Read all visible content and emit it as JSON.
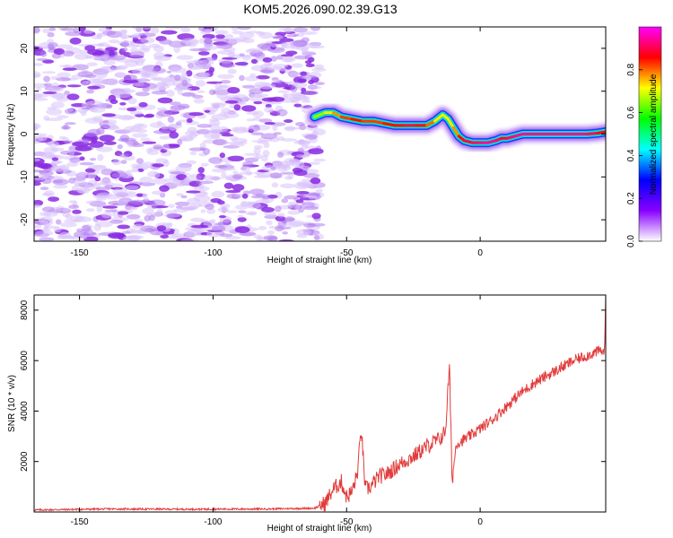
{
  "title": "KOM5.2026.090.02.39.G13",
  "chart_data": [
    {
      "type": "heatmap",
      "title": "KOM5.2026.090.02.39.G13",
      "xlabel": "Height of straight line (km)",
      "ylabel": "Frequency (Hz)",
      "xlim": [
        -167,
        47
      ],
      "ylim": [
        -25,
        25
      ],
      "xticks": [
        -150,
        -100,
        -50,
        0
      ],
      "yticks": [
        -20,
        -10,
        0,
        10,
        20
      ],
      "noise_region_x": [
        -167,
        -60
      ],
      "ridge": {
        "x": [
          -62,
          -58,
          -55,
          -52,
          -48,
          -44,
          -40,
          -36,
          -32,
          -28,
          -24,
          -20,
          -17,
          -14,
          -12,
          -10,
          -8,
          -6,
          -3,
          0,
          3,
          6,
          8,
          10,
          13,
          16,
          20,
          25,
          30,
          35,
          40,
          44,
          47
        ],
        "freq": [
          4,
          5,
          5,
          4,
          3.5,
          3,
          3,
          2.5,
          2,
          2,
          2,
          2,
          3,
          4.5,
          3.5,
          1.5,
          -0.5,
          -1.5,
          -2,
          -2,
          -2,
          -1.5,
          -1,
          -1,
          -0.5,
          0,
          0,
          0,
          0,
          0,
          0,
          0.2,
          0.5
        ],
        "amplitude": [
          0.6,
          0.7,
          0.75,
          0.8,
          0.85,
          0.85,
          0.8,
          0.85,
          0.85,
          0.9,
          0.9,
          0.85,
          0.75,
          0.7,
          0.7,
          0.75,
          0.8,
          0.9,
          0.9,
          0.95,
          0.95,
          0.95,
          0.9,
          0.9,
          0.95,
          0.95,
          0.95,
          0.95,
          0.95,
          0.95,
          0.95,
          0.9,
          0.85
        ]
      },
      "colorbar": {
        "label": "Normalized spectral amplitude",
        "ticks": [
          0.0,
          0.2,
          0.4,
          0.6,
          0.8
        ],
        "range": [
          0,
          1
        ],
        "colors": [
          "#ffffff",
          "#8800ff",
          "#0000ff",
          "#00ffff",
          "#00ff00",
          "#ffff00",
          "#ff0000",
          "#ff00ff"
        ]
      }
    },
    {
      "type": "line",
      "xlabel": "Height of straight line (km)",
      "ylabel": "SNR (10 * v/v)",
      "xlim": [
        -167,
        47
      ],
      "ylim": [
        0,
        8600
      ],
      "xticks": [
        -150,
        -100,
        -50,
        0
      ],
      "yticks": [
        2000,
        4000,
        6000,
        8000
      ],
      "series": [
        {
          "name": "SNR",
          "color": "#e23b3b",
          "x": [
            -167,
            -140,
            -110,
            -80,
            -62,
            -58,
            -55,
            -52,
            -50,
            -48,
            -46,
            -44.5,
            -43,
            -41,
            -38,
            -35,
            -30,
            -25,
            -20,
            -15,
            -13,
            -11.5,
            -10.5,
            -9,
            -7,
            -4,
            0,
            5,
            10,
            15,
            20,
            25,
            30,
            35,
            40,
            45,
            46.5,
            47
          ],
          "values": [
            80,
            120,
            110,
            120,
            150,
            350,
            900,
            1200,
            600,
            800,
            1500,
            3300,
            900,
            1000,
            1400,
            1500,
            1900,
            2200,
            2600,
            2900,
            3200,
            5800,
            1200,
            2700,
            2800,
            3000,
            3300,
            3700,
            4200,
            4700,
            5100,
            5400,
            5700,
            6000,
            6200,
            6400,
            6300,
            8400
          ]
        }
      ]
    }
  ]
}
